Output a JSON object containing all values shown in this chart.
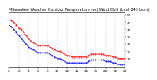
{
  "title": "Milwaukee Weather Outdoor Temperature (vs) Wind Chill (Last 24 Hours)",
  "xlim": [
    0,
    24
  ],
  "ylim": [
    14,
    52
  ],
  "yticks": [
    20,
    25,
    30,
    35,
    40,
    45,
    50
  ],
  "xtick_vals": [
    0,
    2,
    4,
    6,
    8,
    10,
    12,
    14,
    16,
    18,
    20,
    22,
    24
  ],
  "temp_x": [
    0,
    0.5,
    1,
    1.5,
    2,
    2.5,
    3,
    3.5,
    4,
    4.5,
    5,
    5.5,
    6,
    6.5,
    7,
    7.5,
    8,
    8.5,
    9,
    9.5,
    10,
    10.5,
    11,
    11.5,
    12,
    12.5,
    13,
    13.5,
    14,
    14.5,
    15,
    15.5,
    16,
    16.5,
    17,
    17.5,
    18,
    18.5,
    19,
    19.5,
    20,
    20.5,
    21,
    21.5,
    22,
    22.5,
    23,
    23.5,
    24
  ],
  "temp_y": [
    47,
    46,
    45,
    43,
    41,
    40,
    38,
    36,
    34,
    32,
    31,
    30,
    29,
    29,
    29,
    29,
    29,
    28,
    27,
    26,
    25,
    25,
    24,
    23,
    22,
    22,
    21,
    21,
    21,
    21,
    21,
    21,
    21,
    22,
    23,
    23,
    23,
    23,
    23,
    23,
    22,
    22,
    22,
    21,
    21,
    20,
    20,
    20,
    20
  ],
  "chill_x": [
    0,
    0.5,
    1,
    1.5,
    2,
    2.5,
    3,
    3.5,
    4,
    4.5,
    5,
    5.5,
    6,
    6.5,
    7,
    7.5,
    8,
    8.5,
    9,
    9.5,
    10,
    10.5,
    11,
    11.5,
    12,
    12.5,
    13,
    13.5,
    14,
    14.5,
    15,
    15.5,
    16,
    16.5,
    17,
    17.5,
    18,
    18.5,
    19,
    19.5,
    20,
    20.5,
    21,
    21.5,
    22,
    22.5,
    23,
    23.5,
    24
  ],
  "chill_y": [
    43,
    42,
    40,
    38,
    36,
    34,
    32,
    30,
    28,
    27,
    26,
    25,
    24,
    24,
    24,
    24,
    24,
    23,
    22,
    21,
    20,
    20,
    19,
    18,
    17,
    17,
    17,
    17,
    17,
    17,
    17,
    17,
    17,
    18,
    19,
    19,
    19,
    19,
    19,
    19,
    18,
    18,
    18,
    17,
    17,
    16,
    16,
    16,
    16
  ],
  "temp_color": "#ff0000",
  "chill_color": "#0000ff",
  "grid_color": "#c0c0c0",
  "bg_color": "#ffffff",
  "title_fontsize": 3.5,
  "tick_fontsize": 3.0,
  "markersize": 0.8,
  "linewidth": 0.5
}
